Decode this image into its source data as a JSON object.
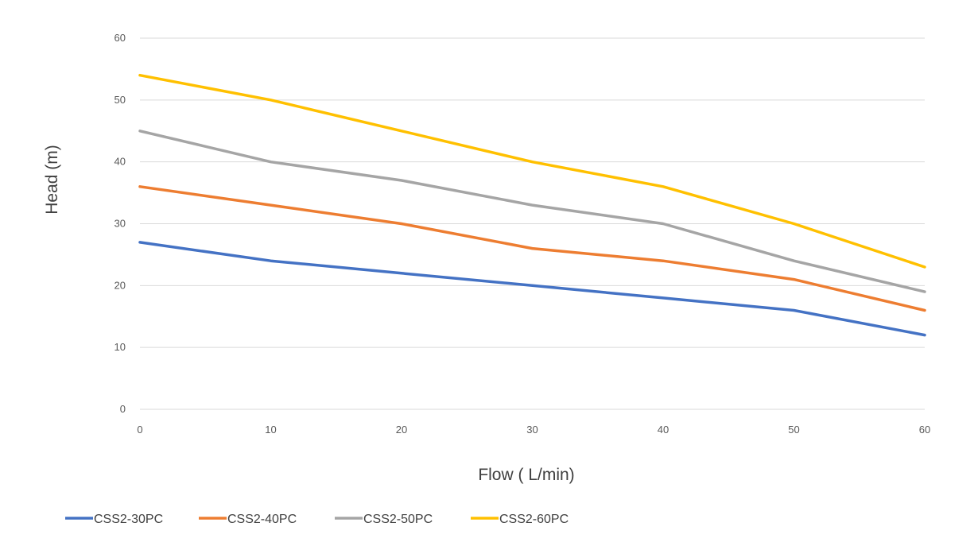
{
  "chart_data": {
    "type": "line",
    "title": "",
    "xlabel": "Flow ( L/min)",
    "ylabel": "Head (m)",
    "x": [
      0,
      10,
      20,
      30,
      40,
      50,
      60
    ],
    "xlim": [
      0,
      60
    ],
    "ylim": [
      0,
      60
    ],
    "xticks": [
      0,
      10,
      20,
      30,
      40,
      50,
      60
    ],
    "yticks": [
      0,
      10,
      20,
      30,
      40,
      50,
      60
    ],
    "grid": "horizontal",
    "legend_position": "bottom-left",
    "series": [
      {
        "name": "CSS2-30PC",
        "color": "#4472C4",
        "values": [
          27,
          24,
          22,
          20,
          18,
          16,
          12
        ]
      },
      {
        "name": "CSS2-40PC",
        "color": "#ED7D31",
        "values": [
          36,
          33,
          30,
          26,
          24,
          21,
          16
        ]
      },
      {
        "name": "CSS2-50PC",
        "color": "#A5A5A5",
        "values": [
          45,
          40,
          37,
          33,
          30,
          24,
          19
        ]
      },
      {
        "name": "CSS2-60PC",
        "color": "#FFC000",
        "values": [
          54,
          50,
          45,
          40,
          36,
          30,
          23
        ]
      }
    ]
  }
}
